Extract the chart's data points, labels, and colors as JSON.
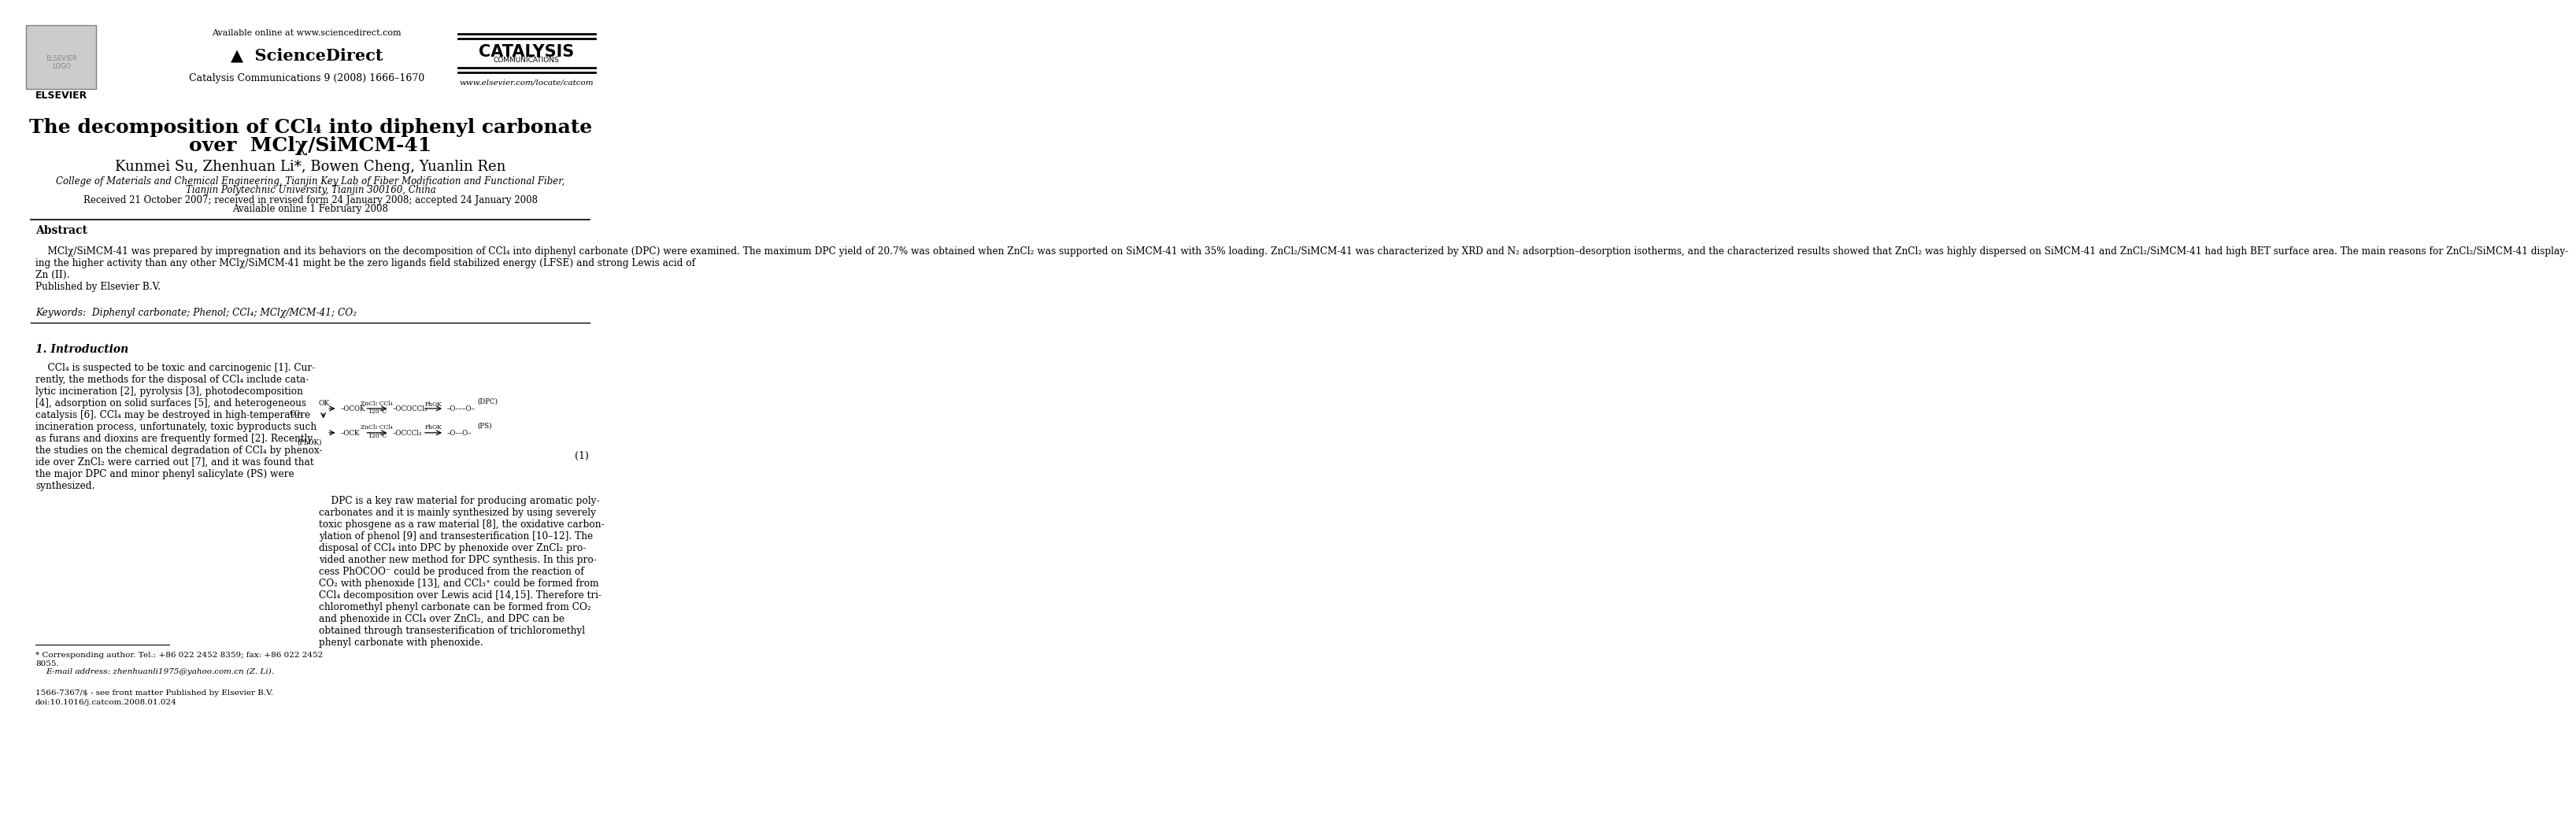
{
  "bg_color": "#ffffff",
  "available_online": "Available online at www.sciencedirect.com",
  "journal_name": "Catalysis Communications 9 (2008) 1666–1670",
  "catalysis_title": "CATALYSIS",
  "catalysis_sub": "COMMUNICATIONS",
  "website": "www.elsevier.com/locate/catcom",
  "title_line1": "The decomposition of CCl₄ into diphenyl carbonate",
  "title_line2": "over  MClχ/SiMCM-41",
  "authors": "Kunmei Su, Zhenhuan Li*, Bowen Cheng, Yuanlin Ren",
  "affiliation1": "College of Materials and Chemical Engineering, Tianjin Key Lab of Fiber Modification and Functional Fiber,",
  "affiliation2": "Tianjin Polytechnic University, Tianjin 300160, China",
  "dates": "Received 21 October 2007; received in revised form 24 January 2008; accepted 24 January 2008",
  "available": "Available online 1 February 2008",
  "abstract_title": "Abstract",
  "abstract_body": "    MClχ/SiMCM-41 was prepared by impregnation and its behaviors on the decomposition of CCl₄ into diphenyl carbonate (DPC) were examined. The maximum DPC yield of 20.7% was obtained when ZnCl₂ was supported on SiMCM-41 with 35% loading. ZnCl₂/SiMCM-41 was characterized by XRD and N₂ adsorption–desorption isotherms, and the characterized results showed that ZnCl₂ was highly dispersed on SiMCM-41 and ZnCl₂/SiMCM-41 had high BET surface area. The main reasons for ZnCl₂/SiMCM-41 display-\ning the higher activity than any other MClχ/SiMCM-41 might be the zero ligands field stabilized energy (LFSE) and strong Lewis acid of\nZn (II).\nPublished by Elsevier B.V.",
  "keywords": "Keywords:  Diphenyl carbonate; Phenol; CCl₄; MClχ/MCM-41; CO₂",
  "section1_title": "1. Introduction",
  "intro_left": "    CCl₄ is suspected to be toxic and carcinogenic [1]. Cur-\nrently, the methods for the disposal of CCl₄ include cata-\nlytic incineration [2], pyrolysis [3], photodecomposition\n[4], adsorption on solid surfaces [5], and heterogeneous\ncatalysis [6]. CCl₄ may be destroyed in high-temperature\nincineration process, unfortunately, toxic byproducts such\nas furans and dioxins are frequently formed [2]. Recently,\nthe studies on the chemical degradation of CCl₄ by phenox-\nide over ZnCl₂ were carried out [7], and it was found that\nthe major DPC and minor phenyl salicylate (PS) were\nsynthesized.",
  "intro_right": "    DPC is a key raw material for producing aromatic poly-\ncarbonates and it is mainly synthesized by using severely\ntoxic phosgene as a raw material [8], the oxidative carbon-\nylation of phenol [9] and transesterification [10–12]. The\ndisposal of CCl₄ into DPC by phenoxide over ZnCl₂ pro-\nvided another new method for DPC synthesis. In this pro-\ncess PhOCOO⁻ could be produced from the reaction of\nCO₂ with phenoxide [13], and CCl₃⁺ could be formed from\nCCl₄ decomposition over Lewis acid [14,15]. Therefore tri-\nchloromethyl phenyl carbonate can be formed from CO₂\nand phenoxide in CCl₄ over ZnCl₂, and DPC can be\nobtained through transesterification of trichloromethyl\nphenyl carbonate with phenoxide.",
  "equation_number": "(1)",
  "footnote_line1": "* Corresponding author. Tel.: +86 022 2452 8359; fax: +86 022 2452",
  "footnote_line2": "8055.",
  "footnote_email": "E-mail address: zhenhuanli1975@yahoo.com.cn (Z. Li).",
  "footer_issn": "1566-7367/$ - see front matter Published by Elsevier B.V.",
  "footer_doi": "doi:10.1016/j.catcom.2008.01.024"
}
